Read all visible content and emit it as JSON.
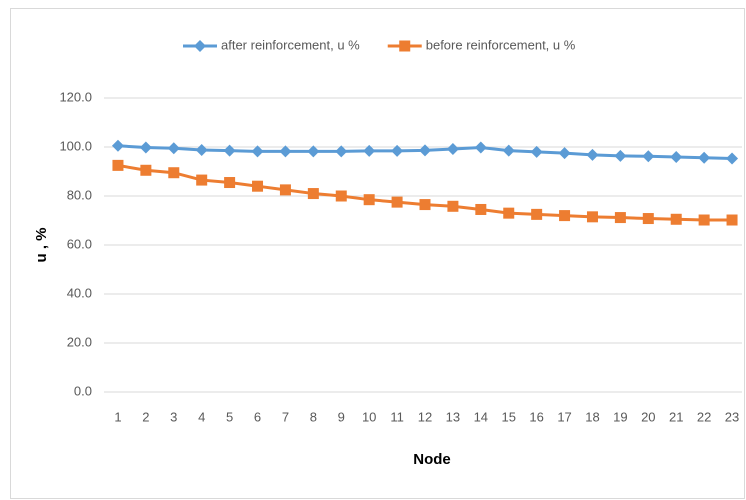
{
  "chart_data": {
    "type": "line",
    "categories": [
      "1",
      "2",
      "3",
      "4",
      "5",
      "6",
      "7",
      "8",
      "9",
      "10",
      "11",
      "12",
      "13",
      "14",
      "15",
      "16",
      "17",
      "18",
      "19",
      "20",
      "21",
      "22",
      "23"
    ],
    "series": [
      {
        "name": "after reinforcement, u %",
        "color": "#5b9bd5",
        "marker": "diamond",
        "values": [
          100.5,
          99.8,
          99.5,
          98.8,
          98.5,
          98.2,
          98.2,
          98.2,
          98.2,
          98.4,
          98.4,
          98.6,
          99.2,
          99.8,
          98.5,
          98.0,
          97.5,
          96.8,
          96.4,
          96.2,
          95.9,
          95.6,
          95.3
        ]
      },
      {
        "name": "before reinforcement, u %",
        "color": "#ed7d31",
        "marker": "square",
        "values": [
          92.5,
          90.5,
          89.5,
          86.5,
          85.5,
          84.0,
          82.5,
          81.0,
          80.0,
          78.5,
          77.5,
          76.5,
          75.8,
          74.5,
          73.0,
          72.5,
          72.0,
          71.5,
          71.2,
          70.8,
          70.5,
          70.2,
          70.2
        ]
      }
    ],
    "xlabel": "Node",
    "ylabel": "u , %",
    "ylim": [
      0,
      120
    ],
    "yticks": [
      {
        "value": 0,
        "label": "0.0"
      },
      {
        "value": 20,
        "label": "20.0"
      },
      {
        "value": 40,
        "label": "40.0"
      },
      {
        "value": 60,
        "label": "60.0"
      },
      {
        "value": 80,
        "label": "80.0"
      },
      {
        "value": 100,
        "label": "100.0"
      },
      {
        "value": 120,
        "label": "120.0"
      }
    ],
    "grid": true,
    "legend": "top"
  }
}
